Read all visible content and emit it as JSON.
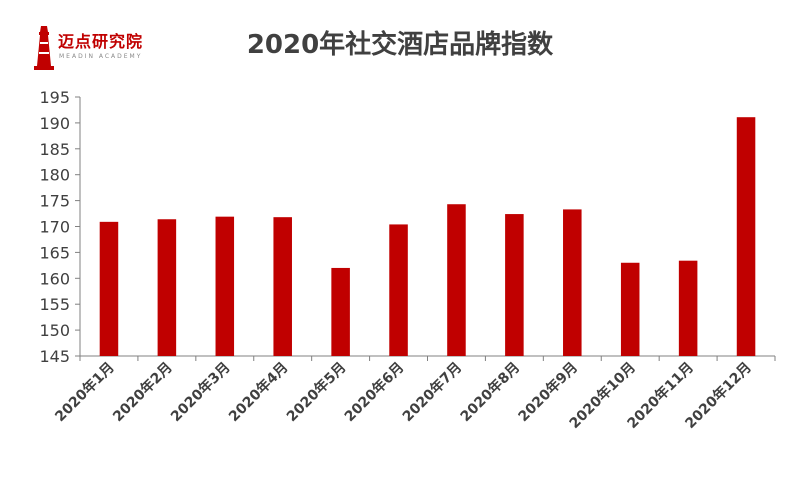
{
  "logo": {
    "name": "迈点研究院",
    "sub": "MEADIN ACADEMY"
  },
  "chart_data": {
    "type": "bar",
    "title": "2020年社交酒店品牌指数",
    "xlabel": "",
    "ylabel": "",
    "categories": [
      "2020年1月",
      "2020年2月",
      "2020年3月",
      "2020年4月",
      "2020年5月",
      "2020年6月",
      "2020年7月",
      "2020年8月",
      "2020年9月",
      "2020年10月",
      "2020年11月",
      "2020年12月"
    ],
    "values": [
      170.9,
      171.4,
      171.9,
      171.8,
      162.0,
      170.4,
      174.3,
      172.4,
      173.3,
      163.0,
      163.4,
      191.1
    ],
    "ylim": [
      145,
      195
    ],
    "yticks": [
      145,
      150,
      155,
      160,
      165,
      170,
      175,
      180,
      185,
      190,
      195
    ],
    "grid": false,
    "legend": "none",
    "bar_color": "#c00000",
    "axis_color": "#808080",
    "text_color": "#404040"
  }
}
